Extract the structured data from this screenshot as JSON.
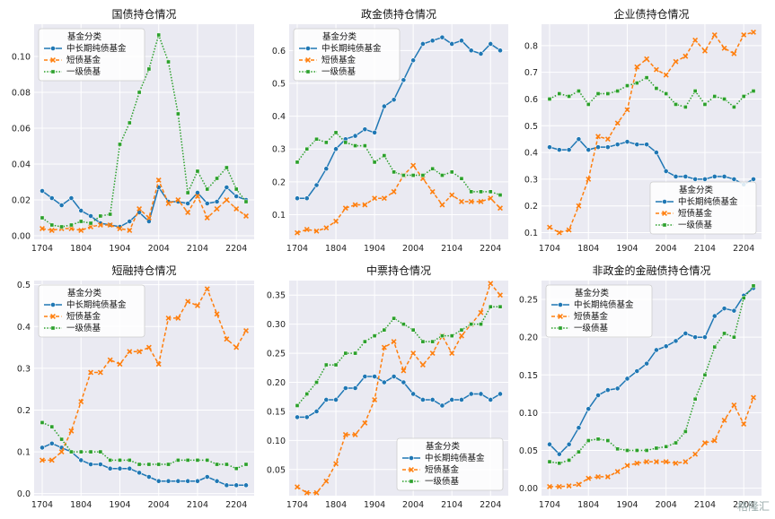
{
  "colors": {
    "series": [
      "#1f77b4",
      "#ff7f0e",
      "#2ca02c"
    ],
    "panel_bg": "#eaeaf2",
    "grid": "#ffffff"
  },
  "watermark": "格隆汇",
  "chart_data": [
    {
      "type": "line",
      "title": "国债持仓情况",
      "x": [
        "1704",
        "1801",
        "1802",
        "1803",
        "1804",
        "1901",
        "1902",
        "1903",
        "1904",
        "2001",
        "2002",
        "2003",
        "2004",
        "2101",
        "2102",
        "2103",
        "2104",
        "2201",
        "2202",
        "2203",
        "2204",
        "2301"
      ],
      "xticks": [
        "1704",
        "1804",
        "1904",
        "2004",
        "2104",
        "2204"
      ],
      "ylim": [
        -0.002,
        0.118
      ],
      "yticks": [
        0.0,
        0.02,
        0.04,
        0.06,
        0.08,
        0.1
      ],
      "ytick_labels": [
        "0.00",
        "0.02",
        "0.04",
        "0.06",
        "0.08",
        "0.10"
      ],
      "legend": {
        "title": "基金分类",
        "position": "upper-left"
      },
      "series": [
        {
          "name": "中长期纯债基金",
          "marker": "circle",
          "values": [
            0.025,
            0.021,
            0.017,
            0.021,
            0.014,
            0.011,
            0.007,
            0.006,
            0.005,
            0.008,
            0.013,
            0.008,
            0.027,
            0.019,
            0.019,
            0.018,
            0.024,
            0.018,
            0.019,
            0.027,
            0.022,
            0.02
          ]
        },
        {
          "name": "短债基金",
          "marker": "x",
          "values": [
            0.004,
            0.003,
            0.004,
            0.004,
            0.003,
            0.005,
            0.006,
            0.006,
            0.004,
            0.003,
            0.015,
            0.01,
            0.031,
            0.018,
            0.02,
            0.013,
            0.022,
            0.01,
            0.015,
            0.02,
            0.015,
            0.011
          ]
        },
        {
          "name": "一级债基",
          "marker": "square",
          "values": [
            0.01,
            0.006,
            0.005,
            0.006,
            0.008,
            0.007,
            0.011,
            0.012,
            0.051,
            0.063,
            0.08,
            0.093,
            0.112,
            0.097,
            0.068,
            0.024,
            0.036,
            0.026,
            0.032,
            0.038,
            0.026,
            0.019
          ]
        }
      ]
    },
    {
      "type": "line",
      "title": "政金债持仓情况",
      "x": [
        "1704",
        "1801",
        "1802",
        "1803",
        "1804",
        "1901",
        "1902",
        "1903",
        "1904",
        "2001",
        "2002",
        "2003",
        "2004",
        "2101",
        "2102",
        "2103",
        "2104",
        "2201",
        "2202",
        "2203",
        "2204",
        "2301"
      ],
      "xticks": [
        "1704",
        "1804",
        "1904",
        "2004",
        "2104",
        "2204"
      ],
      "ylim": [
        0.025,
        0.68
      ],
      "yticks": [
        0.1,
        0.2,
        0.3,
        0.4,
        0.5,
        0.6
      ],
      "ytick_labels": [
        "0.1",
        "0.2",
        "0.3",
        "0.4",
        "0.5",
        "0.6"
      ],
      "legend": {
        "title": "基金分类",
        "position": "upper-left"
      },
      "series": [
        {
          "name": "中长期纯债基金",
          "marker": "circle",
          "values": [
            0.15,
            0.15,
            0.19,
            0.24,
            0.3,
            0.33,
            0.34,
            0.36,
            0.35,
            0.43,
            0.45,
            0.51,
            0.57,
            0.62,
            0.63,
            0.64,
            0.62,
            0.63,
            0.6,
            0.59,
            0.62,
            0.6
          ]
        },
        {
          "name": "短债基金",
          "marker": "x",
          "values": [
            0.045,
            0.055,
            0.05,
            0.06,
            0.08,
            0.12,
            0.13,
            0.13,
            0.15,
            0.15,
            0.17,
            0.22,
            0.25,
            0.21,
            0.17,
            0.13,
            0.16,
            0.14,
            0.14,
            0.14,
            0.15,
            0.12
          ]
        },
        {
          "name": "一级债基",
          "marker": "square",
          "values": [
            0.26,
            0.3,
            0.33,
            0.32,
            0.35,
            0.32,
            0.31,
            0.31,
            0.26,
            0.28,
            0.23,
            0.22,
            0.22,
            0.22,
            0.24,
            0.22,
            0.23,
            0.21,
            0.17,
            0.17,
            0.17,
            0.16
          ]
        }
      ]
    },
    {
      "type": "line",
      "title": "企业债持仓情况",
      "x": [
        "1704",
        "1801",
        "1802",
        "1803",
        "1804",
        "1901",
        "1902",
        "1903",
        "1904",
        "2001",
        "2002",
        "2003",
        "2004",
        "2101",
        "2102",
        "2103",
        "2104",
        "2201",
        "2202",
        "2203",
        "2204",
        "2301"
      ],
      "xticks": [
        "1704",
        "1804",
        "1904",
        "2004",
        "2104",
        "2204"
      ],
      "ylim": [
        0.075,
        0.88
      ],
      "yticks": [
        0.1,
        0.2,
        0.3,
        0.4,
        0.5,
        0.6,
        0.7,
        0.8
      ],
      "ytick_labels": [
        "0.1",
        "0.2",
        "0.3",
        "0.4",
        "0.5",
        "0.6",
        "0.7",
        "0.8"
      ],
      "legend": {
        "title": "基金分类",
        "position": "lower-right"
      },
      "series": [
        {
          "name": "中长期纯债基金",
          "marker": "circle",
          "values": [
            0.42,
            0.41,
            0.41,
            0.45,
            0.41,
            0.42,
            0.42,
            0.43,
            0.44,
            0.43,
            0.43,
            0.4,
            0.33,
            0.31,
            0.31,
            0.3,
            0.3,
            0.31,
            0.31,
            0.3,
            0.28,
            0.3
          ]
        },
        {
          "name": "短债基金",
          "marker": "x",
          "values": [
            0.12,
            0.1,
            0.11,
            0.2,
            0.3,
            0.46,
            0.45,
            0.51,
            0.56,
            0.72,
            0.75,
            0.71,
            0.69,
            0.74,
            0.76,
            0.82,
            0.78,
            0.84,
            0.79,
            0.77,
            0.84,
            0.85
          ]
        },
        {
          "name": "一级债基",
          "marker": "square",
          "values": [
            0.6,
            0.62,
            0.61,
            0.63,
            0.58,
            0.62,
            0.62,
            0.63,
            0.65,
            0.66,
            0.68,
            0.64,
            0.62,
            0.58,
            0.57,
            0.63,
            0.58,
            0.61,
            0.6,
            0.57,
            0.61,
            0.63
          ]
        }
      ]
    },
    {
      "type": "line",
      "title": "短融持仓情况",
      "x": [
        "1704",
        "1801",
        "1802",
        "1803",
        "1804",
        "1901",
        "1902",
        "1903",
        "1904",
        "2001",
        "2002",
        "2003",
        "2004",
        "2101",
        "2102",
        "2103",
        "2104",
        "2201",
        "2202",
        "2203",
        "2204",
        "2301"
      ],
      "xticks": [
        "1704",
        "1804",
        "1904",
        "2004",
        "2104",
        "2204"
      ],
      "ylim": [
        -0.005,
        0.51
      ],
      "yticks": [
        0.0,
        0.1,
        0.2,
        0.3,
        0.4,
        0.5
      ],
      "ytick_labels": [
        "0.0",
        "0.1",
        "0.2",
        "0.3",
        "0.4",
        "0.5"
      ],
      "legend": {
        "title": "基金分类",
        "position": "upper-left"
      },
      "series": [
        {
          "name": "中长期纯债基金",
          "marker": "circle",
          "values": [
            0.11,
            0.12,
            0.11,
            0.1,
            0.08,
            0.07,
            0.07,
            0.06,
            0.06,
            0.06,
            0.05,
            0.04,
            0.03,
            0.03,
            0.03,
            0.03,
            0.03,
            0.04,
            0.03,
            0.02,
            0.02,
            0.02
          ]
        },
        {
          "name": "短债基金",
          "marker": "x",
          "values": [
            0.08,
            0.08,
            0.1,
            0.15,
            0.22,
            0.29,
            0.29,
            0.32,
            0.31,
            0.34,
            0.34,
            0.35,
            0.31,
            0.42,
            0.42,
            0.46,
            0.45,
            0.49,
            0.43,
            0.37,
            0.35,
            0.39
          ]
        },
        {
          "name": "一级债基",
          "marker": "square",
          "values": [
            0.17,
            0.16,
            0.13,
            0.1,
            0.1,
            0.1,
            0.1,
            0.08,
            0.08,
            0.08,
            0.07,
            0.07,
            0.07,
            0.07,
            0.08,
            0.08,
            0.08,
            0.08,
            0.07,
            0.07,
            0.06,
            0.07
          ]
        }
      ]
    },
    {
      "type": "line",
      "title": "中票持仓情况",
      "x": [
        "1704",
        "1801",
        "1802",
        "1803",
        "1804",
        "1901",
        "1902",
        "1903",
        "1904",
        "2001",
        "2002",
        "2003",
        "2004",
        "2101",
        "2102",
        "2103",
        "2104",
        "2201",
        "2202",
        "2203",
        "2204",
        "2301"
      ],
      "xticks": [
        "1704",
        "1804",
        "1904",
        "2004",
        "2104",
        "2204"
      ],
      "ylim": [
        0.005,
        0.375
      ],
      "yticks": [
        0.05,
        0.1,
        0.15,
        0.2,
        0.25,
        0.3,
        0.35
      ],
      "ytick_labels": [
        "0.05",
        "0.10",
        "0.15",
        "0.20",
        "0.25",
        "0.30",
        "0.35"
      ],
      "legend": {
        "title": "基金分类",
        "position": "lower-right"
      },
      "series": [
        {
          "name": "中长期纯债基金",
          "marker": "circle",
          "values": [
            0.14,
            0.14,
            0.15,
            0.17,
            0.17,
            0.19,
            0.19,
            0.21,
            0.21,
            0.2,
            0.21,
            0.2,
            0.18,
            0.17,
            0.17,
            0.16,
            0.17,
            0.17,
            0.18,
            0.18,
            0.17,
            0.18
          ]
        },
        {
          "name": "短债基金",
          "marker": "x",
          "values": [
            0.02,
            0.01,
            0.01,
            0.03,
            0.06,
            0.11,
            0.11,
            0.13,
            0.17,
            0.26,
            0.27,
            0.22,
            0.25,
            0.23,
            0.25,
            0.28,
            0.25,
            0.28,
            0.3,
            0.32,
            0.37,
            0.35
          ]
        },
        {
          "name": "一级债基",
          "marker": "square",
          "values": [
            0.16,
            0.18,
            0.2,
            0.23,
            0.23,
            0.25,
            0.25,
            0.27,
            0.28,
            0.29,
            0.31,
            0.3,
            0.29,
            0.27,
            0.27,
            0.28,
            0.28,
            0.29,
            0.3,
            0.3,
            0.33,
            0.33
          ]
        }
      ]
    },
    {
      "type": "line",
      "title": "非政金的金融债持仓情况",
      "x": [
        "1704",
        "1801",
        "1802",
        "1803",
        "1804",
        "1901",
        "1902",
        "1903",
        "1904",
        "2001",
        "2002",
        "2003",
        "2004",
        "2101",
        "2102",
        "2103",
        "2104",
        "2201",
        "2202",
        "2203",
        "2204",
        "2301"
      ],
      "xticks": [
        "1704",
        "1804",
        "1904",
        "2004",
        "2104",
        "2204"
      ],
      "ylim": [
        -0.01,
        0.275
      ],
      "yticks": [
        0.0,
        0.05,
        0.1,
        0.15,
        0.2,
        0.25
      ],
      "ytick_labels": [
        "0.00",
        "0.05",
        "0.10",
        "0.15",
        "0.20",
        "0.25"
      ],
      "legend": {
        "title": "基金分类",
        "position": "upper-left"
      },
      "series": [
        {
          "name": "中长期纯债基金",
          "marker": "circle",
          "values": [
            0.058,
            0.045,
            0.058,
            0.08,
            0.105,
            0.123,
            0.13,
            0.132,
            0.145,
            0.155,
            0.165,
            0.183,
            0.188,
            0.195,
            0.205,
            0.2,
            0.2,
            0.228,
            0.238,
            0.235,
            0.255,
            0.265
          ]
        },
        {
          "name": "短债基金",
          "marker": "x",
          "values": [
            0.002,
            0.002,
            0.003,
            0.005,
            0.013,
            0.015,
            0.015,
            0.022,
            0.03,
            0.033,
            0.035,
            0.035,
            0.035,
            0.033,
            0.035,
            0.045,
            0.06,
            0.063,
            0.09,
            0.11,
            0.085,
            0.12
          ]
        },
        {
          "name": "一级债基",
          "marker": "square",
          "values": [
            0.035,
            0.033,
            0.037,
            0.048,
            0.063,
            0.065,
            0.063,
            0.052,
            0.05,
            0.05,
            0.05,
            0.053,
            0.055,
            0.06,
            0.075,
            0.118,
            0.15,
            0.187,
            0.205,
            0.2,
            0.252,
            0.268
          ]
        }
      ]
    }
  ]
}
